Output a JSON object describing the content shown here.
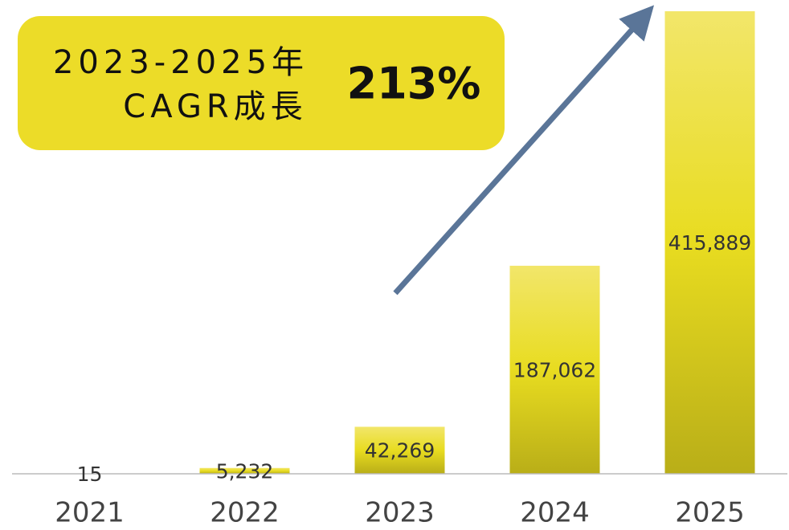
{
  "chart_data": {
    "type": "bar",
    "categories": [
      "2021",
      "2022",
      "2023",
      "2024",
      "2025"
    ],
    "values": [
      15,
      5232,
      42269,
      187062,
      415889
    ],
    "value_labels": [
      "15",
      "5,232",
      "42,269",
      "187,062",
      "415,889"
    ],
    "color": "#e6da1e",
    "annotation": {
      "lines": [
        "2023-2025年",
        "CAGR成長"
      ],
      "value": "213%"
    }
  }
}
